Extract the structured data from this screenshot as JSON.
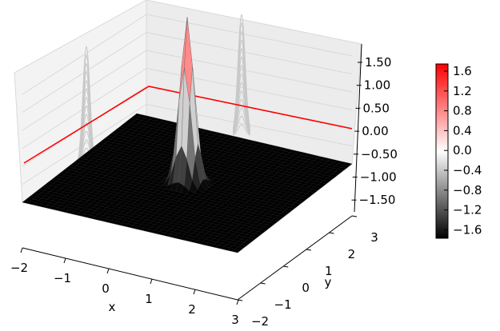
{
  "chart_data": {
    "type": "surface3d",
    "title": "",
    "xlabel": "x",
    "ylabel": "y",
    "zlabel": "",
    "xlim": [
      -2,
      3
    ],
    "ylim": [
      -2,
      3
    ],
    "zlim": [
      -1.7,
      1.85
    ],
    "x_ticks": [
      "−2",
      "−1",
      "0",
      "1",
      "2",
      "3"
    ],
    "y_ticks": [
      "−2",
      "−1",
      "0",
      "1",
      "2",
      "3"
    ],
    "z_ticks": [
      "1.50",
      "1.00",
      "0.50",
      "0.00",
      "−0.50",
      "−1.00",
      "−1.50"
    ],
    "surface": {
      "function": "peak",
      "peak_height": 1.7,
      "center": [
        0.5,
        0.5
      ],
      "surface_base_z": -1.7,
      "colormap": "black-white-red"
    },
    "projections": {
      "x_wall_contour": "gray",
      "y_wall_contour": "gray",
      "line_color": "#ff0000"
    },
    "colorbar": {
      "ticks": [
        "1.6",
        "1.2",
        "0.8",
        "0.4",
        "0.0",
        "−0.4",
        "−0.8",
        "−1.2",
        "−1.6"
      ],
      "range": [
        -1.7,
        1.7
      ],
      "colors": [
        "#000000",
        "#ffffff",
        "#ff0000"
      ]
    },
    "grid": true
  }
}
